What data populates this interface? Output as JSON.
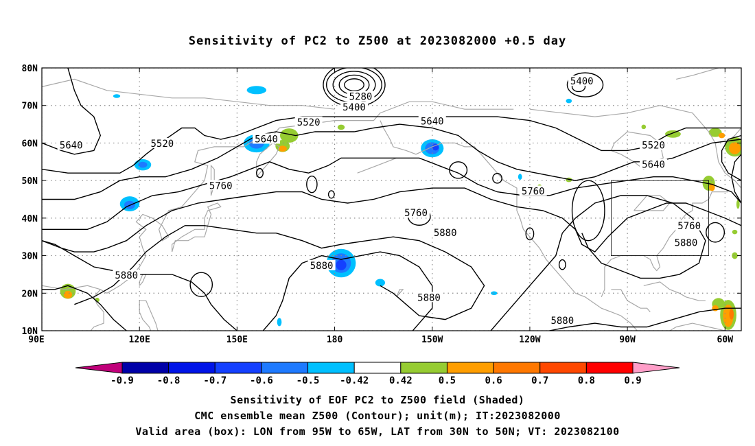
{
  "title": "Sensitivity of PC2 to Z500 at 2023082000 +0.5 day",
  "captions": {
    "line1": "Sensitivity of EOF PC2 to Z500 field (Shaded)",
    "line2": "CMC ensemble mean Z500 (Contour); unit(m); IT:2023082000",
    "line3": "Valid area (box): LON from 95W to 65W, LAT from 30N to 50N; VT: 2023082100"
  },
  "map": {
    "lat_labels": [
      "80N",
      "70N",
      "60N",
      "50N",
      "40N",
      "30N",
      "20N",
      "10N"
    ],
    "lat_values": [
      80,
      70,
      60,
      50,
      40,
      30,
      20,
      10
    ],
    "lon_labels": [
      "90E",
      "120E",
      "150E",
      "180",
      "150W",
      "120W",
      "90W",
      "60W"
    ],
    "lon_values": [
      90,
      120,
      150,
      180,
      210,
      240,
      270,
      300
    ],
    "lon_range": [
      90,
      305
    ],
    "lat_range": [
      10,
      80
    ],
    "valid_box": {
      "lon_min": 265,
      "lon_max": 295,
      "lat_min": 30,
      "lat_max": 50
    },
    "contour_labels": [
      {
        "text": "5400",
        "lon": 256,
        "lat": 76.5
      },
      {
        "text": "5280",
        "lon": 188,
        "lat": 72.4
      },
      {
        "text": "5400",
        "lon": 186,
        "lat": 69.6
      },
      {
        "text": "5520",
        "lon": 172,
        "lat": 65.6
      },
      {
        "text": "5640",
        "lon": 210,
        "lat": 65.8
      },
      {
        "text": "5640",
        "lon": 99,
        "lat": 59.4
      },
      {
        "text": "5520",
        "lon": 127,
        "lat": 59.9
      },
      {
        "text": "5640",
        "lon": 159,
        "lat": 61.1
      },
      {
        "text": "5520",
        "lon": 278,
        "lat": 59.4
      },
      {
        "text": "5640",
        "lon": 278,
        "lat": 54.3
      },
      {
        "text": "5760",
        "lon": 145,
        "lat": 48.7
      },
      {
        "text": "5760",
        "lon": 205,
        "lat": 41.4
      },
      {
        "text": "5760",
        "lon": 241,
        "lat": 47.2
      },
      {
        "text": "5760",
        "lon": 289,
        "lat": 38.0
      },
      {
        "text": "5880",
        "lon": 288,
        "lat": 33.5
      },
      {
        "text": "5880",
        "lon": 214,
        "lat": 36.1
      },
      {
        "text": "5880",
        "lon": 176,
        "lat": 27.4
      },
      {
        "text": "5880",
        "lon": 116,
        "lat": 24.8
      },
      {
        "text": "5880",
        "lon": 209,
        "lat": 18.9
      },
      {
        "text": "5880",
        "lon": 250,
        "lat": 12.7
      }
    ]
  },
  "colorbar": {
    "labels": [
      "-0.9",
      "-0.8",
      "-0.7",
      "-0.6",
      "-0.5",
      "-0.42",
      "0.42",
      "0.5",
      "0.6",
      "0.7",
      "0.8",
      "0.9"
    ],
    "colors": [
      "#c0007a",
      "#0000a8",
      "#0014e8",
      "#1440ff",
      "#1e7aff",
      "#00c0ff",
      "#ffffff",
      "#96cc32",
      "#ff9e00",
      "#ff7800",
      "#ff4800",
      "#ff0000",
      "#ff9ec8"
    ]
  }
}
